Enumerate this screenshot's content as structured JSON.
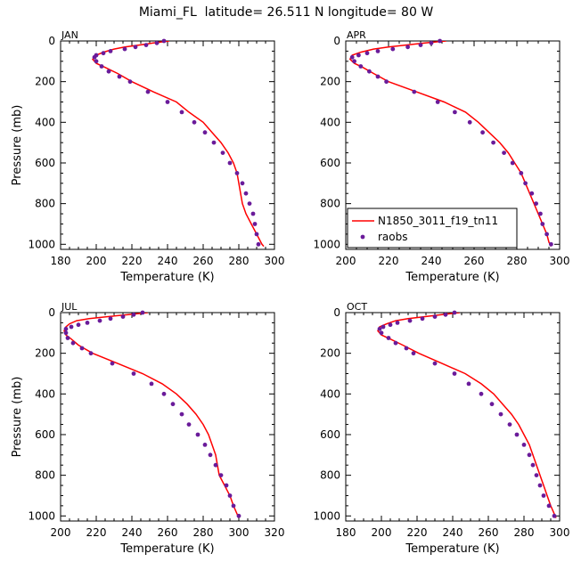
{
  "page_title": "Miami_FL  latitude= 26.511 N longitude= 80 W",
  "colors": {
    "model": "#ff0000",
    "obs": "#6a1b9a",
    "axis": "#000000"
  },
  "legend": {
    "model_label": "N1850_3011_f19_tn11",
    "obs_label": "raobs"
  },
  "chart_data": [
    {
      "type": "line",
      "panel": "JAN",
      "xlabel": "Temperature (K)",
      "ylabel": "Pressure (mb)",
      "xlim": [
        180,
        300
      ],
      "ylim": [
        1025,
        0
      ],
      "xticks": [
        180,
        200,
        220,
        240,
        260,
        280,
        300
      ],
      "yticks": [
        0,
        200,
        400,
        600,
        800,
        1000
      ],
      "series": [
        {
          "name": "N1850_3011_f19_tn11",
          "kind": "line",
          "points": [
            [
              241,
              0
            ],
            [
              232,
              10
            ],
            [
              224,
              20
            ],
            [
              216,
              30
            ],
            [
              210,
              40
            ],
            [
              204,
              55
            ],
            [
              200,
              70
            ],
            [
              198,
              90
            ],
            [
              200,
              110
            ],
            [
              205,
              130
            ],
            [
              212,
              160
            ],
            [
              220,
              200
            ],
            [
              232,
              250
            ],
            [
              245,
              300
            ],
            [
              252,
              350
            ],
            [
              260,
              400
            ],
            [
              265,
              450
            ],
            [
              270,
              500
            ],
            [
              274,
              550
            ],
            [
              277,
              600
            ],
            [
              279,
              650
            ],
            [
              280,
              700
            ],
            [
              281,
              750
            ],
            [
              282,
              800
            ],
            [
              284,
              850
            ],
            [
              287,
              900
            ],
            [
              290,
              950
            ],
            [
              293,
              1000
            ],
            [
              294,
              1010
            ]
          ]
        },
        {
          "name": "raobs",
          "kind": "scatter",
          "points": [
            [
              238,
              0
            ],
            [
              234,
              10
            ],
            [
              228,
              20
            ],
            [
              222,
              30
            ],
            [
              216,
              40
            ],
            [
              208,
              50
            ],
            [
              204,
              60
            ],
            [
              200,
              70
            ],
            [
              199,
              80
            ],
            [
              200,
              100
            ],
            [
              203,
              125
            ],
            [
              207,
              150
            ],
            [
              213,
              175
            ],
            [
              219,
              200
            ],
            [
              229,
              250
            ],
            [
              240,
              300
            ],
            [
              248,
              350
            ],
            [
              255,
              400
            ],
            [
              261,
              450
            ],
            [
              266,
              500
            ],
            [
              271,
              550
            ],
            [
              275,
              600
            ],
            [
              279,
              650
            ],
            [
              282,
              700
            ],
            [
              284,
              750
            ],
            [
              286,
              800
            ],
            [
              288,
              850
            ],
            [
              289,
              900
            ],
            [
              290,
              950
            ],
            [
              291,
              1000
            ]
          ]
        }
      ]
    },
    {
      "type": "line",
      "panel": "APR",
      "xlabel": "Temperature (K)",
      "ylabel": "",
      "xlim": [
        200,
        300
      ],
      "ylim": [
        1025,
        0
      ],
      "xticks": [
        200,
        220,
        240,
        260,
        280,
        300
      ],
      "yticks": [
        0,
        200,
        400,
        600,
        800,
        1000
      ],
      "legend_position": "bottom-left",
      "series": [
        {
          "name": "N1850_3011_f19_tn11",
          "kind": "line",
          "points": [
            [
              247,
              0
            ],
            [
              237,
              10
            ],
            [
              228,
              20
            ],
            [
              220,
              30
            ],
            [
              213,
              40
            ],
            [
              207,
              55
            ],
            [
              203,
              70
            ],
            [
              202,
              90
            ],
            [
              204,
              110
            ],
            [
              208,
              130
            ],
            [
              213,
              160
            ],
            [
              220,
              200
            ],
            [
              233,
              250
            ],
            [
              246,
              300
            ],
            [
              256,
              350
            ],
            [
              262,
              400
            ],
            [
              267,
              450
            ],
            [
              272,
              500
            ],
            [
              276,
              550
            ],
            [
              279,
              600
            ],
            [
              282,
              650
            ],
            [
              284,
              700
            ],
            [
              286,
              750
            ],
            [
              288,
              800
            ],
            [
              290,
              850
            ],
            [
              292,
              900
            ],
            [
              294,
              950
            ],
            [
              295,
              990
            ],
            [
              296,
              1010
            ]
          ]
        },
        {
          "name": "raobs",
          "kind": "scatter",
          "points": [
            [
              244,
              0
            ],
            [
              240,
              10
            ],
            [
              235,
              20
            ],
            [
              229,
              30
            ],
            [
              222,
              40
            ],
            [
              215,
              50
            ],
            [
              210,
              60
            ],
            [
              206,
              70
            ],
            [
              203,
              80
            ],
            [
              204,
              100
            ],
            [
              207,
              125
            ],
            [
              211,
              150
            ],
            [
              215,
              175
            ],
            [
              219,
              200
            ],
            [
              232,
              250
            ],
            [
              243,
              300
            ],
            [
              251,
              350
            ],
            [
              258,
              400
            ],
            [
              264,
              450
            ],
            [
              269,
              500
            ],
            [
              274,
              550
            ],
            [
              278,
              600
            ],
            [
              282,
              650
            ],
            [
              284,
              700
            ],
            [
              287,
              750
            ],
            [
              289,
              800
            ],
            [
              291,
              850
            ],
            [
              292,
              900
            ],
            [
              294,
              950
            ],
            [
              296,
              1000
            ]
          ]
        }
      ]
    },
    {
      "type": "line",
      "panel": "JUL",
      "xlabel": "Temperature (K)",
      "ylabel": "Pressure (mb)",
      "xlim": [
        200,
        320
      ],
      "ylim": [
        1025,
        0
      ],
      "xticks": [
        200,
        220,
        240,
        260,
        280,
        300,
        320
      ],
      "yticks": [
        0,
        200,
        400,
        600,
        800,
        1000
      ],
      "series": [
        {
          "name": "N1850_3011_f19_tn11",
          "kind": "line",
          "points": [
            [
              249,
              0
            ],
            [
              238,
              10
            ],
            [
              226,
              20
            ],
            [
              216,
              30
            ],
            [
              209,
              40
            ],
            [
              205,
              55
            ],
            [
              203,
              70
            ],
            [
              202,
              90
            ],
            [
              203,
              110
            ],
            [
              206,
              130
            ],
            [
              210,
              160
            ],
            [
              218,
              200
            ],
            [
              232,
              250
            ],
            [
              246,
              300
            ],
            [
              257,
              350
            ],
            [
              265,
              400
            ],
            [
              271,
              450
            ],
            [
              276,
              500
            ],
            [
              280,
              550
            ],
            [
              283,
              600
            ],
            [
              285,
              650
            ],
            [
              287,
              700
            ],
            [
              288,
              750
            ],
            [
              289,
              800
            ],
            [
              292,
              850
            ],
            [
              295,
              900
            ],
            [
              297,
              950
            ],
            [
              299,
              990
            ],
            [
              300,
              1010
            ]
          ]
        },
        {
          "name": "raobs",
          "kind": "scatter",
          "points": [
            [
              246,
              0
            ],
            [
              241,
              10
            ],
            [
              235,
              20
            ],
            [
              228,
              30
            ],
            [
              222,
              40
            ],
            [
              215,
              50
            ],
            [
              210,
              60
            ],
            [
              206,
              70
            ],
            [
              203,
              80
            ],
            [
              203,
              100
            ],
            [
              204,
              125
            ],
            [
              207,
              150
            ],
            [
              212,
              175
            ],
            [
              217,
              200
            ],
            [
              229,
              250
            ],
            [
              241,
              300
            ],
            [
              251,
              350
            ],
            [
              258,
              400
            ],
            [
              263,
              450
            ],
            [
              268,
              500
            ],
            [
              272,
              550
            ],
            [
              277,
              600
            ],
            [
              281,
              650
            ],
            [
              284,
              700
            ],
            [
              287,
              750
            ],
            [
              290,
              800
            ],
            [
              293,
              850
            ],
            [
              295,
              900
            ],
            [
              297,
              950
            ],
            [
              300,
              1000
            ]
          ]
        }
      ]
    },
    {
      "type": "line",
      "panel": "OCT",
      "xlabel": "Temperature (K)",
      "ylabel": "",
      "xlim": [
        180,
        300
      ],
      "ylim": [
        1025,
        0
      ],
      "xticks": [
        180,
        200,
        220,
        240,
        260,
        280,
        300
      ],
      "yticks": [
        0,
        200,
        400,
        600,
        800,
        1000
      ],
      "series": [
        {
          "name": "N1850_3011_f19_tn11",
          "kind": "line",
          "points": [
            [
              244,
              0
            ],
            [
              234,
              10
            ],
            [
              224,
              20
            ],
            [
              215,
              30
            ],
            [
              208,
              40
            ],
            [
              203,
              55
            ],
            [
              199,
              70
            ],
            [
              198,
              90
            ],
            [
              200,
              110
            ],
            [
              205,
              130
            ],
            [
              212,
              160
            ],
            [
              221,
              200
            ],
            [
              234,
              250
            ],
            [
              247,
              300
            ],
            [
              256,
              350
            ],
            [
              263,
              400
            ],
            [
              268,
              450
            ],
            [
              273,
              500
            ],
            [
              277,
              550
            ],
            [
              280,
              600
            ],
            [
              283,
              650
            ],
            [
              285,
              700
            ],
            [
              287,
              750
            ],
            [
              289,
              800
            ],
            [
              291,
              850
            ],
            [
              293,
              900
            ],
            [
              295,
              950
            ],
            [
              297,
              990
            ],
            [
              298,
              1010
            ]
          ]
        },
        {
          "name": "raobs",
          "kind": "scatter",
          "points": [
            [
              241,
              0
            ],
            [
              236,
              10
            ],
            [
              230,
              20
            ],
            [
              223,
              30
            ],
            [
              216,
              40
            ],
            [
              209,
              50
            ],
            [
              205,
              60
            ],
            [
              201,
              70
            ],
            [
              199,
              80
            ],
            [
              200,
              100
            ],
            [
              204,
              125
            ],
            [
              208,
              150
            ],
            [
              214,
              175
            ],
            [
              218,
              200
            ],
            [
              230,
              250
            ],
            [
              241,
              300
            ],
            [
              249,
              350
            ],
            [
              256,
              400
            ],
            [
              262,
              450
            ],
            [
              267,
              500
            ],
            [
              272,
              550
            ],
            [
              276,
              600
            ],
            [
              280,
              650
            ],
            [
              283,
              700
            ],
            [
              285,
              750
            ],
            [
              287,
              800
            ],
            [
              289,
              850
            ],
            [
              291,
              900
            ],
            [
              294,
              950
            ],
            [
              297,
              1000
            ]
          ]
        }
      ]
    }
  ]
}
